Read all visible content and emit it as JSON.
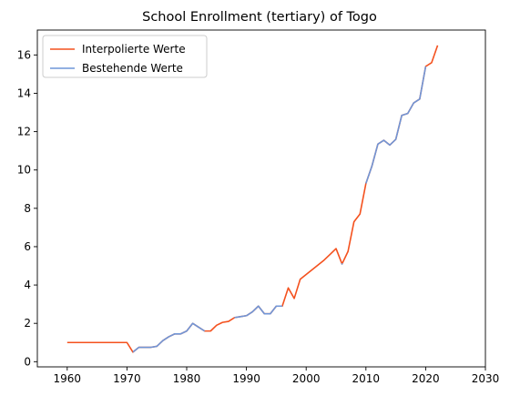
{
  "chart_data": {
    "type": "line",
    "title": "School Enrollment (tertiary) of Togo",
    "xlabel": "",
    "ylabel": "",
    "xlim": [
      1960,
      2030
    ],
    "ylim": [
      0,
      17
    ],
    "xticks": [
      1960,
      1970,
      1980,
      1990,
      2000,
      2010,
      2020,
      2030
    ],
    "yticks": [
      0,
      2,
      4,
      6,
      8,
      10,
      12,
      14,
      16
    ],
    "grid": false,
    "legend_position": "top-left",
    "series": [
      {
        "name": "Interpolierte Werte",
        "color": "#f4511e",
        "x": [
          1960,
          1961,
          1962,
          1963,
          1964,
          1965,
          1966,
          1967,
          1968,
          1969,
          1970,
          1971,
          1972,
          1973,
          1974,
          1975,
          1976,
          1977,
          1978,
          1979,
          1980,
          1981,
          1982,
          1983,
          1984,
          1985,
          1986,
          1987,
          1988,
          1989,
          1990,
          1991,
          1992,
          1993,
          1994,
          1995,
          1996,
          1997,
          1998,
          1999,
          2000,
          2001,
          2002,
          2003,
          2004,
          2005,
          2006,
          2007,
          2008,
          2009,
          2010,
          2011,
          2012,
          2013,
          2014,
          2015,
          2016,
          2017,
          2018,
          2019,
          2020,
          2021,
          2022
        ],
        "values": [
          1.0,
          1.0,
          1.0,
          1.0,
          1.0,
          1.0,
          1.0,
          1.0,
          1.0,
          1.0,
          1.0,
          0.5,
          0.75,
          0.75,
          0.75,
          0.8,
          1.1,
          1.3,
          1.45,
          1.45,
          1.6,
          2.0,
          1.8,
          1.6,
          1.6,
          1.9,
          2.05,
          2.1,
          2.3,
          2.35,
          2.4,
          2.6,
          2.9,
          2.5,
          2.5,
          2.9,
          2.9,
          3.85,
          3.3,
          4.3,
          4.55,
          4.8,
          5.05,
          5.3,
          5.6,
          5.9,
          5.1,
          5.75,
          7.3,
          7.7,
          9.3,
          10.2,
          11.35,
          11.55,
          11.3,
          11.6,
          12.85,
          12.95,
          13.5,
          13.7,
          15.4,
          15.6,
          16.5
        ]
      },
      {
        "name": "Bestehende Werte",
        "color": "#6f96d8",
        "segments": [
          {
            "x": [
              1971,
              1972,
              1973,
              1974,
              1975,
              1976,
              1977,
              1978,
              1979,
              1980,
              1981,
              1982,
              1983
            ],
            "values": [
              0.5,
              0.75,
              0.75,
              0.75,
              0.8,
              1.1,
              1.3,
              1.45,
              1.45,
              1.6,
              2.0,
              1.8,
              1.6
            ]
          },
          {
            "x": [
              1988,
              1989,
              1990,
              1991,
              1992,
              1993,
              1994,
              1995,
              1996
            ],
            "values": [
              2.3,
              2.35,
              2.4,
              2.6,
              2.9,
              2.5,
              2.5,
              2.9,
              2.9
            ]
          },
          {
            "x": [
              2006
            ],
            "values": [
              5.1
            ]
          },
          {
            "x": [
              2010,
              2011,
              2012,
              2013,
              2014,
              2015,
              2016,
              2017,
              2018,
              2019,
              2020
            ],
            "values": [
              9.3,
              10.2,
              11.35,
              11.55,
              11.3,
              11.6,
              12.85,
              12.95,
              13.5,
              13.7,
              15.4
            ]
          }
        ]
      }
    ]
  }
}
